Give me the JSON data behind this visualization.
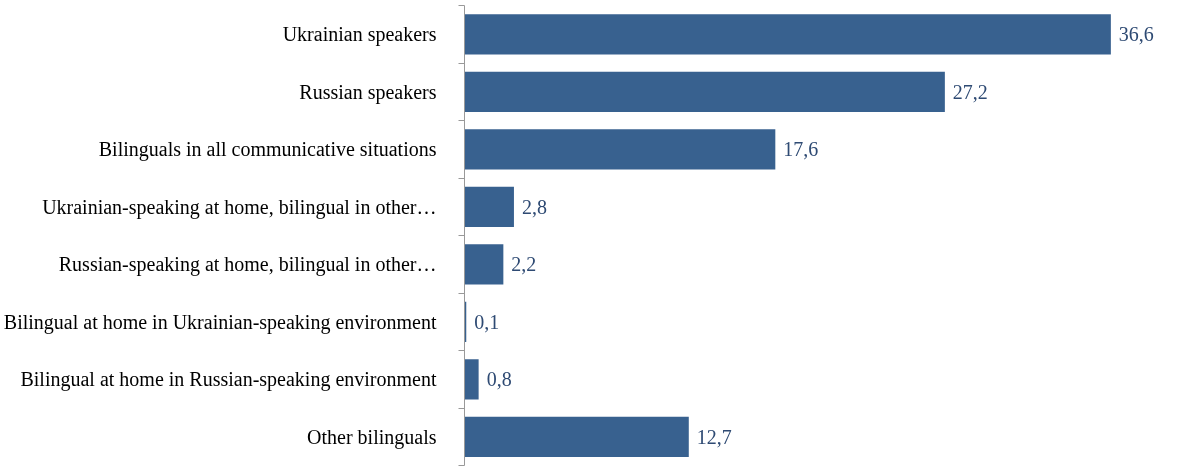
{
  "chart_data": {
    "type": "bar",
    "orientation": "horizontal",
    "categories": [
      "Ukrainian speakers",
      "Russian speakers",
      "Bilinguals in all communicative situations",
      "Ukrainian-speaking at home, bilingual in other…",
      "Russian-speaking at home, bilingual in other…",
      "Bilingual at home in Ukrainian-speaking environment",
      "Bilingual at home in Russian-speaking environment",
      "Other bilinguals"
    ],
    "values": [
      36.6,
      27.2,
      17.6,
      2.8,
      2.2,
      0.1,
      0.8,
      12.7
    ],
    "value_labels": [
      "36,6",
      "27,2",
      "17,6",
      "2,8",
      "2,2",
      "0,1",
      "0,8",
      "12,7"
    ],
    "color": "#38618f",
    "grid": false
  }
}
